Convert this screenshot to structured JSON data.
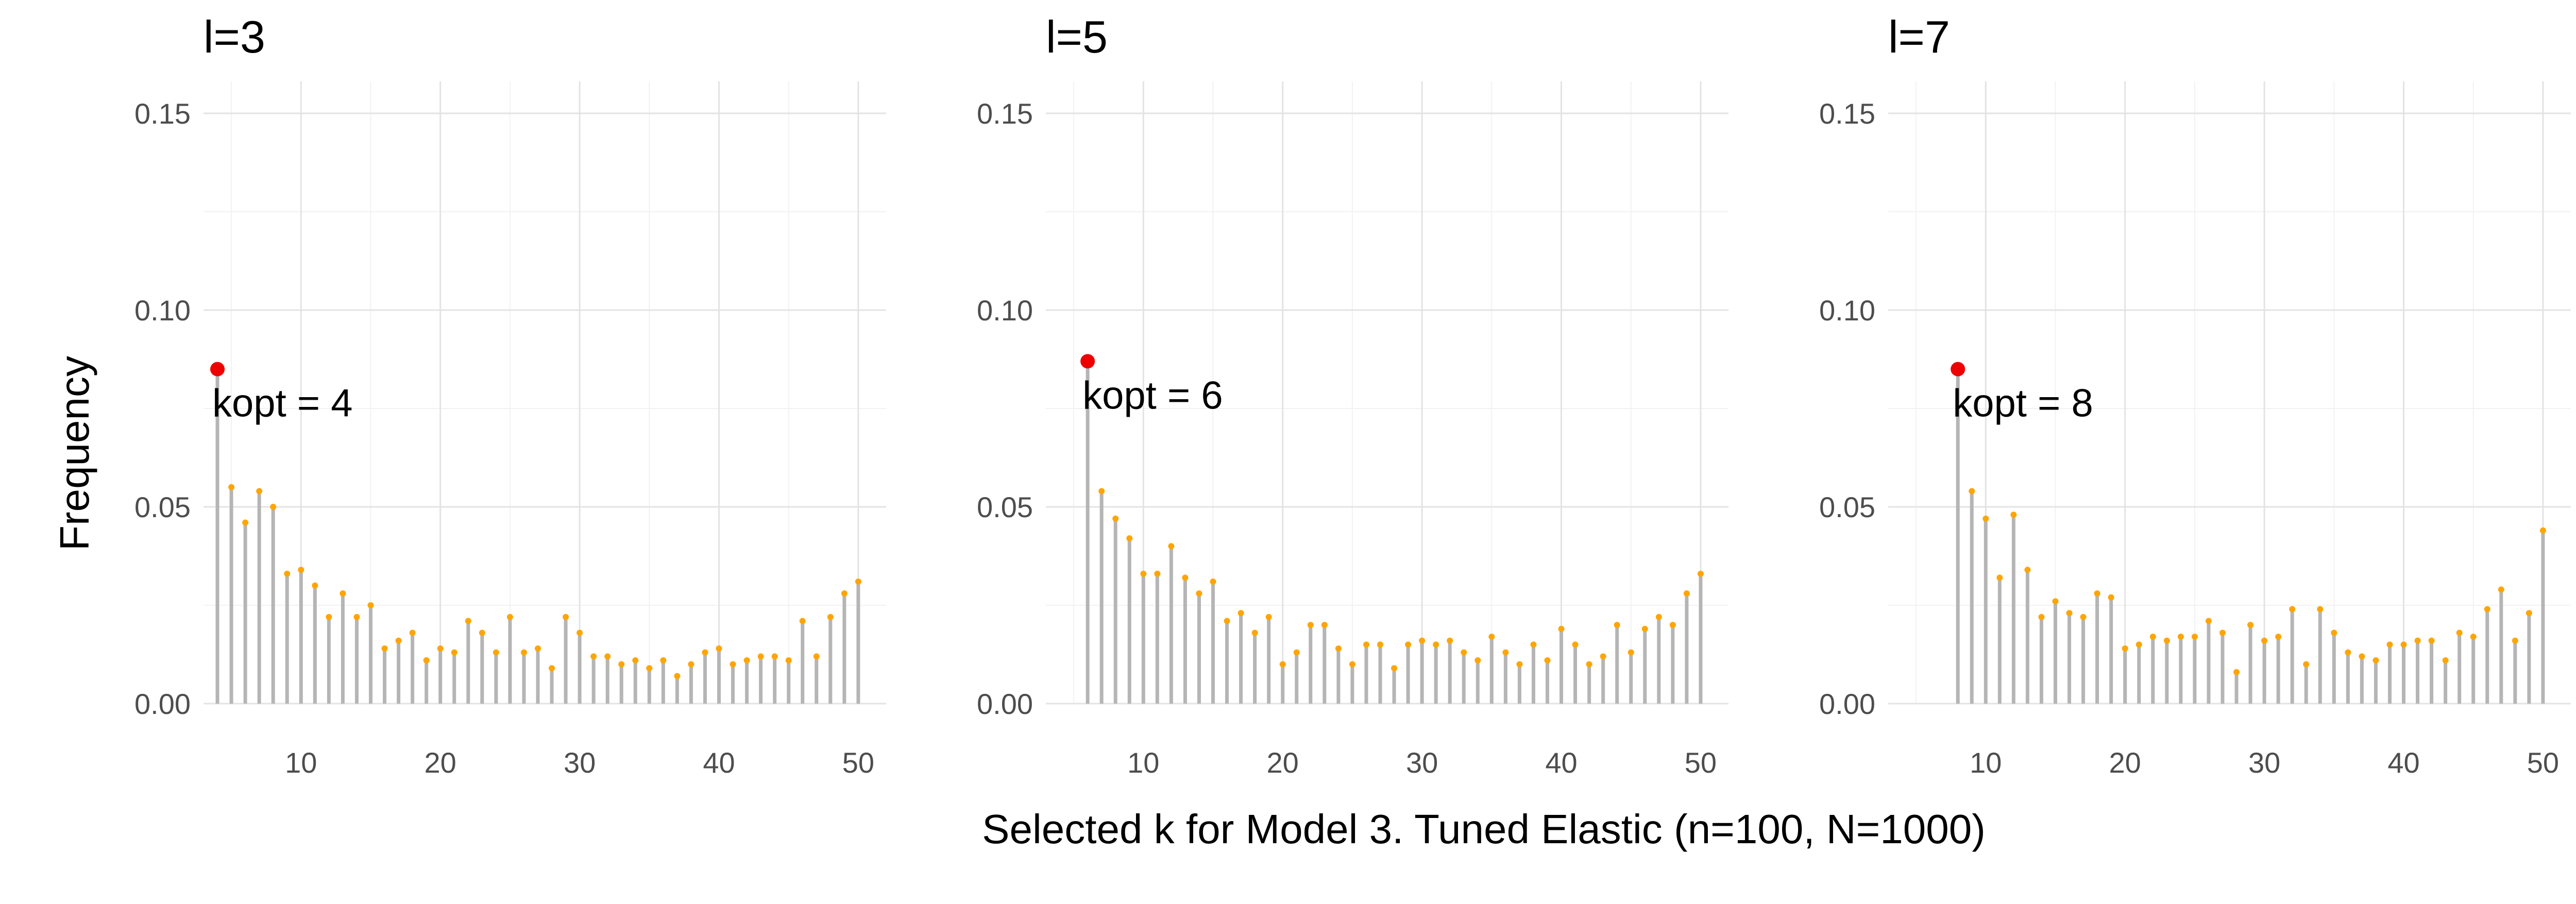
{
  "chart_data": {
    "type": "lollipop",
    "xlabel": "Selected k for Model 3. Tuned Elastic (n=100, N=1000)",
    "ylabel": "Frequency",
    "xlim": [
      3,
      52
    ],
    "ylim": [
      0,
      0.15
    ],
    "x_ticks": [
      "10",
      "20",
      "30",
      "40",
      "50"
    ],
    "y_ticks": [
      "0.00",
      "0.05",
      "0.10",
      "0.15"
    ],
    "grid": true,
    "point_color": "#FFA500",
    "stem_color": "#B5B5B5",
    "optimum_color": "#EE0000",
    "panels": [
      {
        "title": "l=3",
        "x_start": 4,
        "values": [
          0.085,
          0.055,
          0.046,
          0.054,
          0.05,
          0.033,
          0.034,
          0.03,
          0.022,
          0.028,
          0.022,
          0.025,
          0.014,
          0.016,
          0.018,
          0.011,
          0.014,
          0.013,
          0.021,
          0.018,
          0.013,
          0.022,
          0.013,
          0.014,
          0.009,
          0.022,
          0.018,
          0.012,
          0.012,
          0.01,
          0.011,
          0.009,
          0.011,
          0.007,
          0.01,
          0.013,
          0.014,
          0.01,
          0.011,
          0.012,
          0.012,
          0.011,
          0.021,
          0.012,
          0.022,
          0.028,
          0.031
        ],
        "kopt_label": "kopt = 4",
        "kopt": 4
      },
      {
        "title": "l=5",
        "x_start": 6,
        "values": [
          0.087,
          0.054,
          0.047,
          0.042,
          0.033,
          0.033,
          0.04,
          0.032,
          0.028,
          0.031,
          0.021,
          0.023,
          0.018,
          0.022,
          0.01,
          0.013,
          0.02,
          0.02,
          0.014,
          0.01,
          0.015,
          0.015,
          0.009,
          0.015,
          0.016,
          0.015,
          0.016,
          0.013,
          0.011,
          0.017,
          0.013,
          0.01,
          0.015,
          0.011,
          0.019,
          0.015,
          0.01,
          0.012,
          0.02,
          0.013,
          0.019,
          0.022,
          0.02,
          0.028,
          0.033
        ],
        "kopt_label": "kopt = 6",
        "kopt": 6
      },
      {
        "title": "l=7",
        "x_start": 8,
        "values": [
          0.085,
          0.054,
          0.047,
          0.032,
          0.048,
          0.034,
          0.022,
          0.026,
          0.023,
          0.022,
          0.028,
          0.027,
          0.014,
          0.015,
          0.017,
          0.016,
          0.017,
          0.017,
          0.021,
          0.018,
          0.008,
          0.02,
          0.016,
          0.017,
          0.024,
          0.01,
          0.024,
          0.018,
          0.013,
          0.012,
          0.011,
          0.015,
          0.015,
          0.016,
          0.016,
          0.011,
          0.018,
          0.017,
          0.024,
          0.029,
          0.016,
          0.023,
          0.044
        ],
        "kopt_label": "kopt = 8",
        "kopt": 8
      }
    ]
  }
}
